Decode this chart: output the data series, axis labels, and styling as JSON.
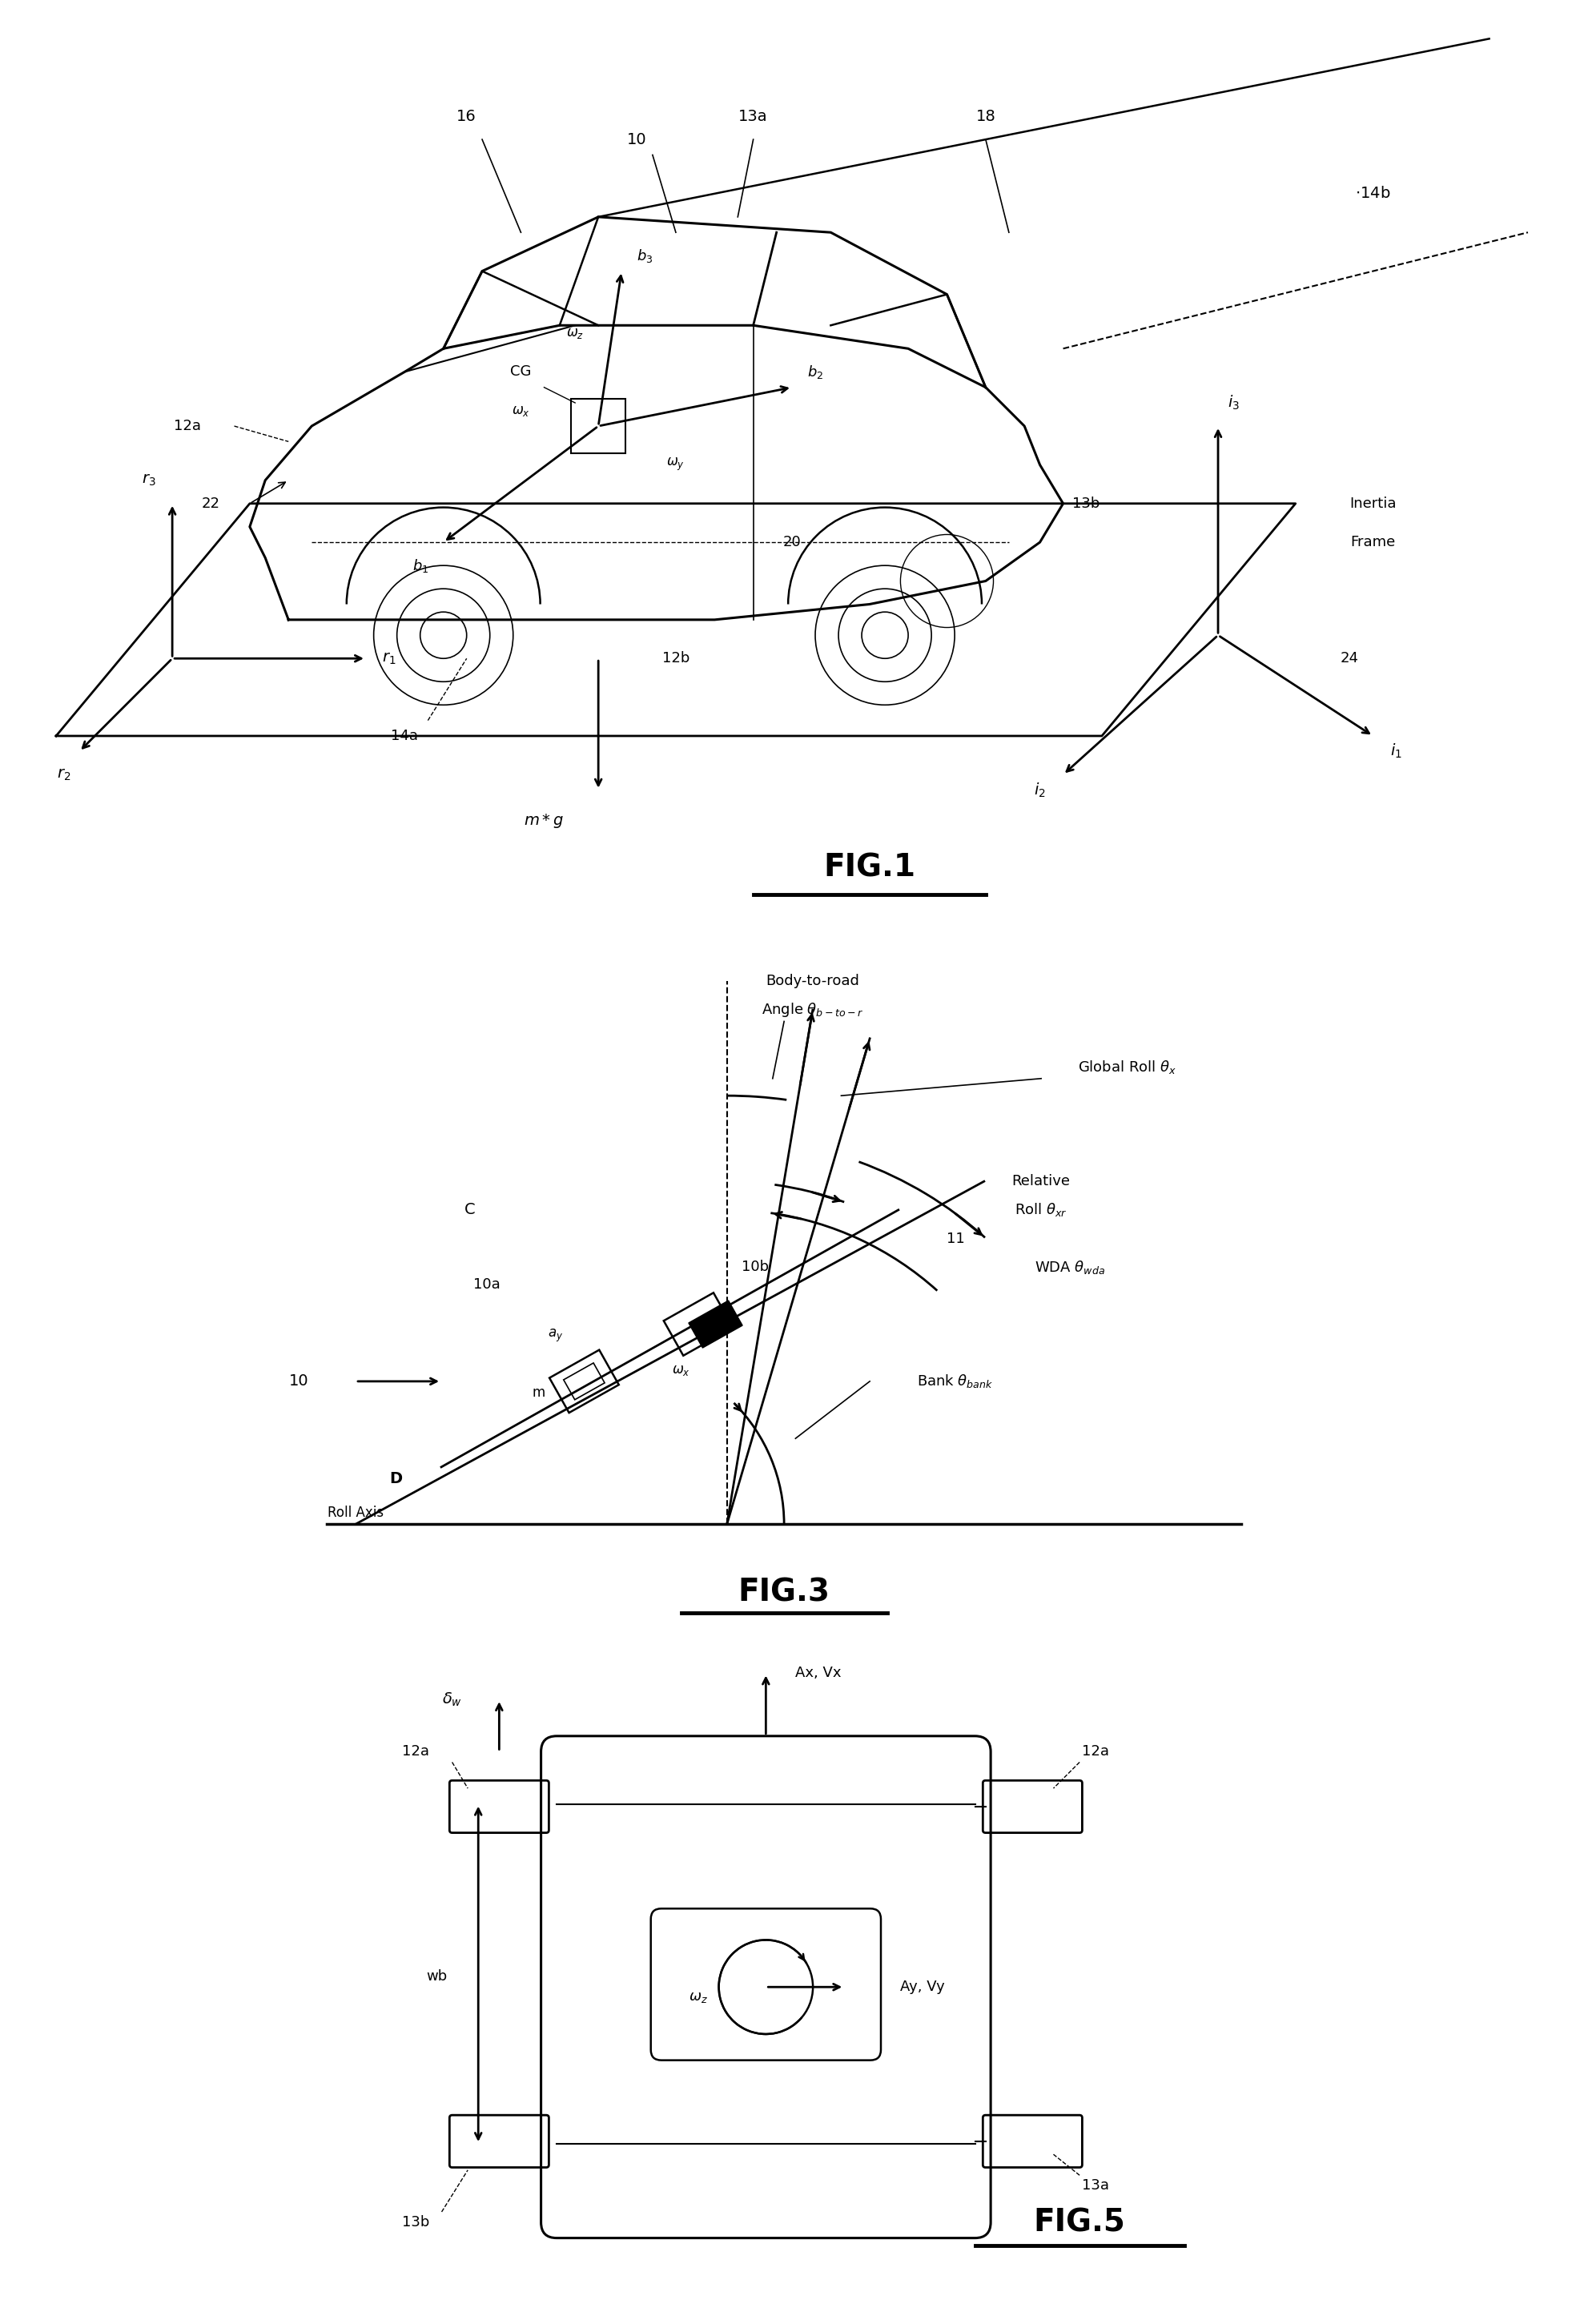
{
  "bg_color": "#ffffff",
  "fig_width": 19.78,
  "fig_height": 29.02,
  "fig1_title": "FIG.1",
  "fig3_title": "FIG.3",
  "fig5_title": "FIG.5",
  "lw_main": 1.8,
  "lw_thick": 2.5,
  "fs_label": 13,
  "fs_title": 28
}
